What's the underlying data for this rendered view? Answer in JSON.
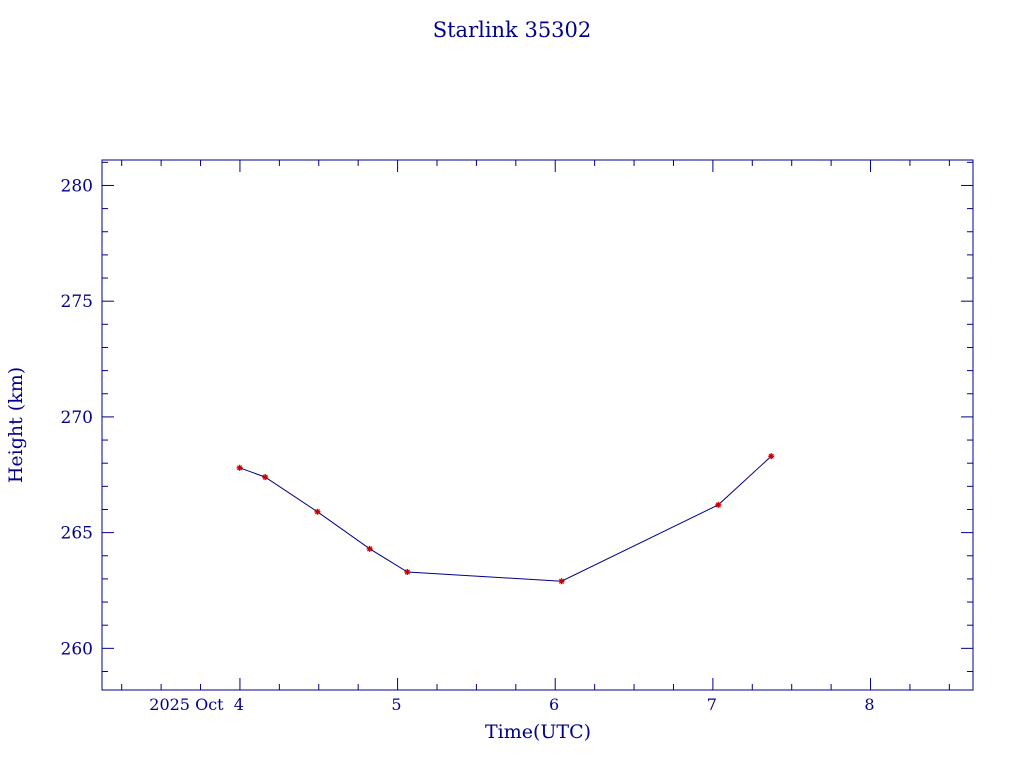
{
  "chart_data": {
    "type": "line",
    "title": "Starlink 35302",
    "xlabel": "Time(UTC)",
    "ylabel": "Height (km)",
    "x_unit": "day of October 2025 (UTC)",
    "xlim": [
      3.125,
      8.65
    ],
    "ylim": [
      258.2,
      281.1
    ],
    "x_ticks": [
      {
        "value": 4,
        "label": "2025 Oct  4"
      },
      {
        "value": 5,
        "label": "5"
      },
      {
        "value": 6,
        "label": "6"
      },
      {
        "value": 7,
        "label": "7"
      },
      {
        "value": 8,
        "label": "8"
      }
    ],
    "y_ticks": [
      260,
      265,
      270,
      275,
      280
    ],
    "series": [
      {
        "x": [
          3.998,
          4.16,
          4.492,
          4.823,
          5.062,
          6.04,
          7.035,
          7.37
        ],
        "y": [
          267.8,
          267.4,
          265.9,
          264.3,
          263.3,
          262.9,
          266.2,
          268.3
        ]
      }
    ],
    "grid": false,
    "line_color": "#00008b",
    "marker_color": "#cc0000",
    "axis_color": "#00008b"
  }
}
